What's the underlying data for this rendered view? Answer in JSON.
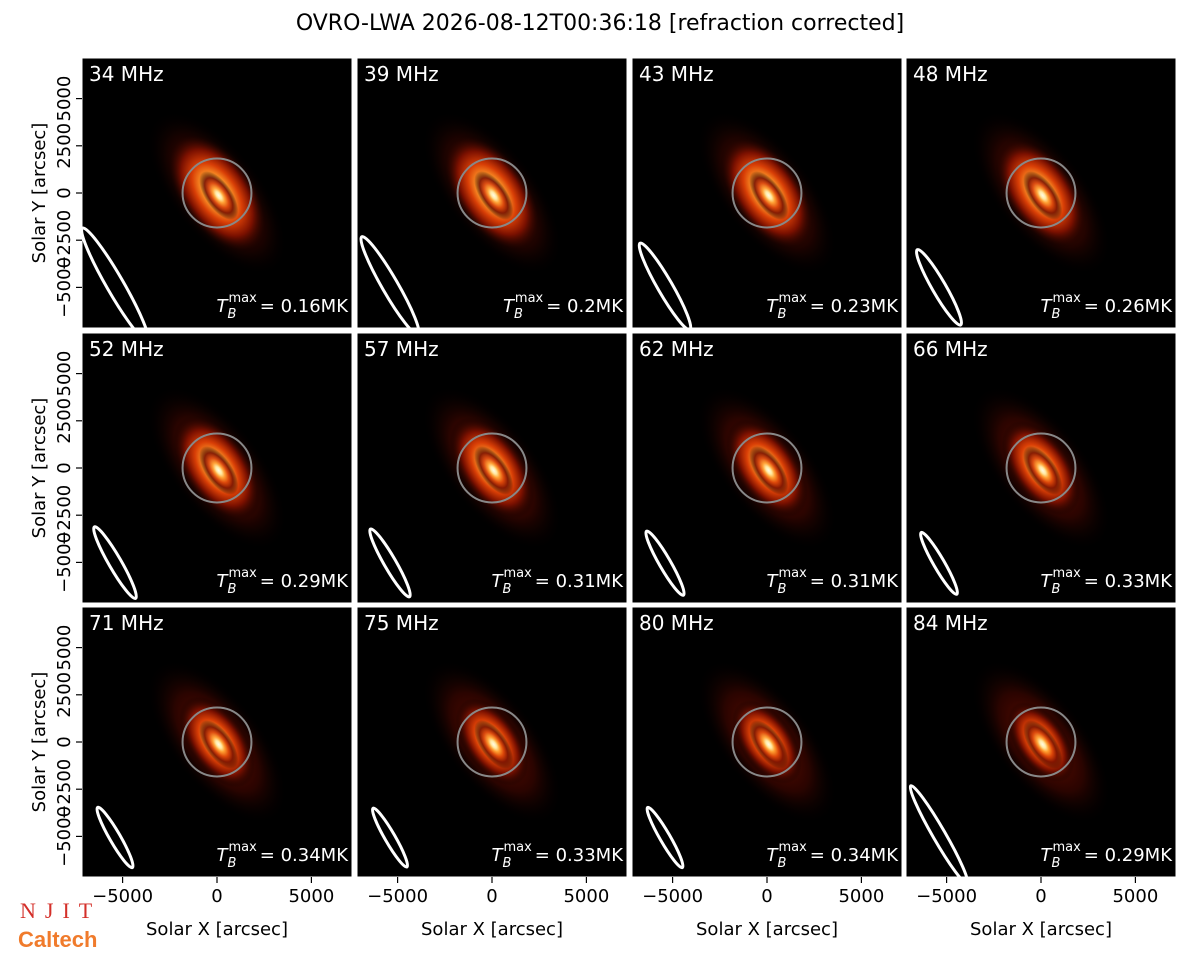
{
  "title": "OVRO-LWA 2026-08-12T00:36:18 [refraction corrected]",
  "logos": [
    "NJIT",
    "Caltech"
  ],
  "tb_symbol": "T",
  "tb_sub": "B",
  "tb_sup": "max",
  "chart_data": [
    {
      "type": "image",
      "title": "34 MHz",
      "annotation": "= 0.16MK",
      "xlim": [
        -7150,
        7150
      ],
      "ylim": [
        -7150,
        7150
      ],
      "ylabel": "Solar Y [arcsec]",
      "yticks": [
        {
          "value": -5000,
          "label": "−5000"
        },
        {
          "value": -2500,
          "label": "−2500"
        },
        0,
        2500,
        5000
      ]
    },
    {
      "type": "image",
      "title": "39 MHz",
      "annotation": "= 0.2MK",
      "xlim": [
        -7150,
        7150
      ],
      "ylim": [
        -7150,
        7150
      ]
    },
    {
      "type": "image",
      "title": "43 MHz",
      "annotation": "= 0.23MK",
      "xlim": [
        -7150,
        7150
      ],
      "ylim": [
        -7150,
        7150
      ]
    },
    {
      "type": "image",
      "title": "48 MHz",
      "annotation": "= 0.26MK",
      "xlim": [
        -7150,
        7150
      ],
      "ylim": [
        -7150,
        7150
      ]
    },
    {
      "type": "image",
      "title": "52 MHz",
      "annotation": "= 0.29MK",
      "xlim": [
        -7150,
        7150
      ],
      "ylim": [
        -7150,
        7150
      ],
      "ylabel": "Solar Y [arcsec]",
      "yticks": [
        {
          "value": -5000,
          "label": "−5000"
        },
        {
          "value": -2500,
          "label": "−2500"
        },
        0,
        2500,
        5000
      ]
    },
    {
      "type": "image",
      "title": "57 MHz",
      "annotation": "= 0.31MK",
      "xlim": [
        -7150,
        7150
      ],
      "ylim": [
        -7150,
        7150
      ]
    },
    {
      "type": "image",
      "title": "62 MHz",
      "annotation": "= 0.31MK",
      "xlim": [
        -7150,
        7150
      ],
      "ylim": [
        -7150,
        7150
      ]
    },
    {
      "type": "image",
      "title": "66 MHz",
      "annotation": "= 0.33MK",
      "xlim": [
        -7150,
        7150
      ],
      "ylim": [
        -7150,
        7150
      ]
    },
    {
      "type": "image",
      "title": "71 MHz",
      "annotation": "= 0.34MK",
      "xlim": [
        -7150,
        7150
      ],
      "ylim": [
        -7150,
        7150
      ],
      "ylabel": "Solar Y [arcsec]",
      "xlabel": "Solar X [arcsec]",
      "yticks": [
        {
          "value": -5000,
          "label": "−5000"
        },
        {
          "value": -2500,
          "label": "−2500"
        },
        0,
        2500,
        5000
      ],
      "xticks": [
        {
          "value": -5000,
          "label": "−5000"
        },
        0,
        5000
      ]
    },
    {
      "type": "image",
      "title": "75 MHz",
      "annotation": "= 0.33MK",
      "xlim": [
        -7150,
        7150
      ],
      "ylim": [
        -7150,
        7150
      ],
      "xlabel": "Solar X [arcsec]",
      "xticks": [
        {
          "value": -5000,
          "label": "−5000"
        },
        0,
        5000
      ]
    },
    {
      "type": "image",
      "title": "80 MHz",
      "annotation": "= 0.34MK",
      "xlim": [
        -7150,
        7150
      ],
      "ylim": [
        -7150,
        7150
      ],
      "xlabel": "Solar X [arcsec]",
      "xticks": [
        {
          "value": -5000,
          "label": "−5000"
        },
        0,
        5000
      ]
    },
    {
      "type": "image",
      "title": "84 MHz",
      "annotation": "= 0.29MK",
      "xlim": [
        -7150,
        7150
      ],
      "ylim": [
        -7150,
        7150
      ],
      "xlabel": "Solar X [arcsec]",
      "xticks": [
        {
          "value": -5000,
          "label": "−5000"
        },
        0,
        5000
      ]
    }
  ]
}
